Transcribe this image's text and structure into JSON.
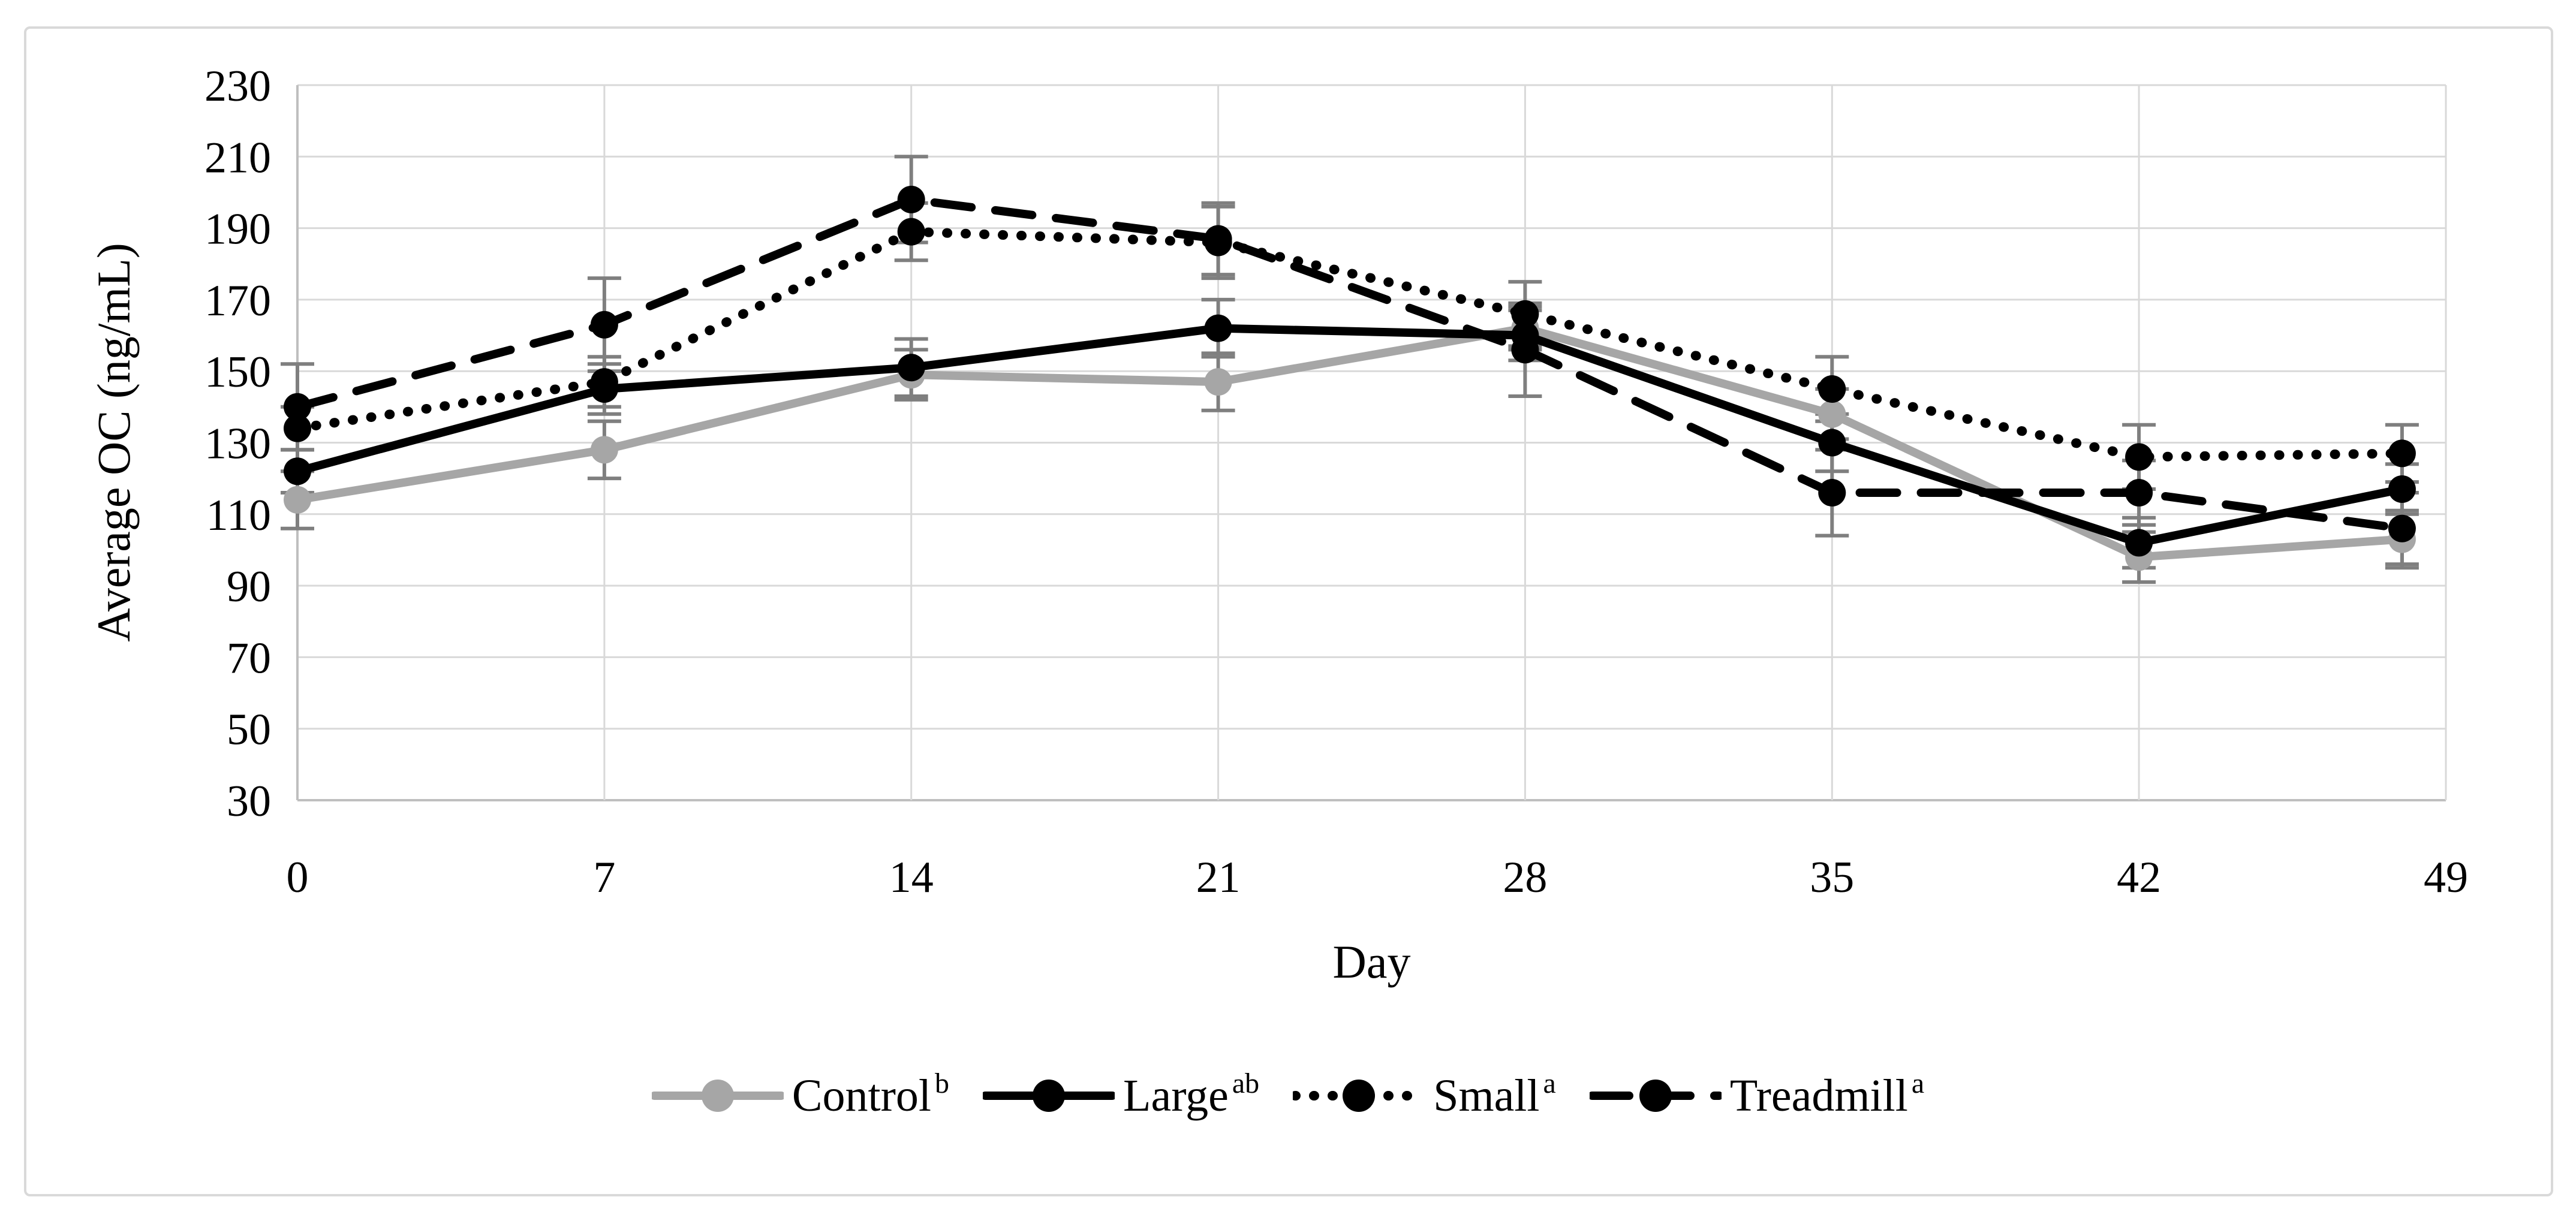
{
  "chart_data": {
    "type": "line",
    "title": "",
    "xlabel": "Day",
    "ylabel": "Average OC (ng/mL)",
    "xlim": [
      0,
      49
    ],
    "ylim": [
      30,
      230
    ],
    "yticks": [
      230,
      210,
      190,
      170,
      150,
      130,
      110,
      90,
      70,
      50,
      30
    ],
    "xticks": [
      0,
      7,
      14,
      21,
      28,
      35,
      42,
      49
    ],
    "x": [
      0,
      7,
      14,
      21,
      28,
      35,
      42,
      48
    ],
    "grid": true,
    "legend_position": "bottom",
    "grid_color": "#D9D9D9",
    "axis_line_color": "#BFBFBF",
    "error_bar_color": "#7F7F7F",
    "series": [
      {
        "name": "Control",
        "superscript": "b",
        "color": "#A6A6A6",
        "style": "solid",
        "values": [
          114,
          128,
          149,
          147,
          162,
          138,
          98,
          103
        ],
        "errors": [
          8,
          8,
          7,
          8,
          6,
          7,
          7,
          8
        ]
      },
      {
        "name": "Large",
        "superscript": "ab",
        "color": "#000000",
        "style": "solid",
        "values": [
          122,
          145,
          151,
          162,
          160,
          130,
          102,
          117
        ],
        "errors": [
          6,
          7,
          8,
          8,
          7,
          8,
          7,
          7
        ]
      },
      {
        "name": "Small",
        "superscript": "a",
        "color": "#000000",
        "style": "dotted",
        "values": [
          134,
          147,
          189,
          186,
          166,
          145,
          126,
          127
        ],
        "errors": [
          6,
          7,
          8,
          10,
          9,
          9,
          9,
          8
        ]
      },
      {
        "name": "Treadmill",
        "superscript": "a",
        "color": "#000000",
        "style": "dashed",
        "values": [
          140,
          163,
          198,
          187,
          156,
          116,
          116,
          106
        ],
        "errors": [
          12,
          13,
          12,
          10,
          13,
          12,
          9,
          10
        ]
      }
    ]
  }
}
